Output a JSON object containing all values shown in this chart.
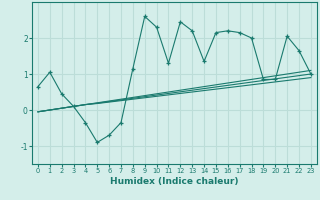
{
  "x": [
    0,
    1,
    2,
    3,
    4,
    5,
    6,
    7,
    8,
    9,
    10,
    11,
    12,
    13,
    14,
    15,
    16,
    17,
    18,
    19,
    20,
    21,
    22,
    23
  ],
  "y_main": [
    0.65,
    1.05,
    0.45,
    0.1,
    -0.35,
    -0.9,
    -0.7,
    -0.35,
    1.15,
    2.6,
    2.3,
    1.3,
    2.45,
    2.2,
    1.35,
    2.15,
    2.2,
    2.15,
    2.0,
    0.85,
    0.85,
    2.05,
    1.65,
    1.0
  ],
  "y_line1": [
    -0.05,
    0.0,
    0.05,
    0.1,
    0.15,
    0.18,
    0.22,
    0.26,
    0.3,
    0.34,
    0.38,
    0.42,
    0.46,
    0.5,
    0.54,
    0.58,
    0.62,
    0.66,
    0.7,
    0.74,
    0.78,
    0.82,
    0.86,
    0.9
  ],
  "y_line2": [
    -0.05,
    0.0,
    0.05,
    0.1,
    0.15,
    0.19,
    0.235,
    0.28,
    0.325,
    0.37,
    0.415,
    0.46,
    0.505,
    0.55,
    0.595,
    0.64,
    0.685,
    0.73,
    0.775,
    0.82,
    0.865,
    0.91,
    0.955,
    1.0
  ],
  "y_line3": [
    -0.05,
    0.0,
    0.05,
    0.1,
    0.15,
    0.2,
    0.25,
    0.3,
    0.35,
    0.4,
    0.45,
    0.5,
    0.55,
    0.6,
    0.65,
    0.7,
    0.75,
    0.8,
    0.85,
    0.9,
    0.95,
    1.0,
    1.05,
    1.1
  ],
  "line_color": "#1a7a6e",
  "bg_color": "#d4eeea",
  "grid_color": "#bcddd8",
  "xlabel": "Humidex (Indice chaleur)",
  "xlim": [
    -0.5,
    23.5
  ],
  "ylim": [
    -1.5,
    3.0
  ],
  "yticks": [
    -1,
    0,
    1,
    2
  ],
  "xticks": [
    0,
    1,
    2,
    3,
    4,
    5,
    6,
    7,
    8,
    9,
    10,
    11,
    12,
    13,
    14,
    15,
    16,
    17,
    18,
    19,
    20,
    21,
    22,
    23
  ]
}
